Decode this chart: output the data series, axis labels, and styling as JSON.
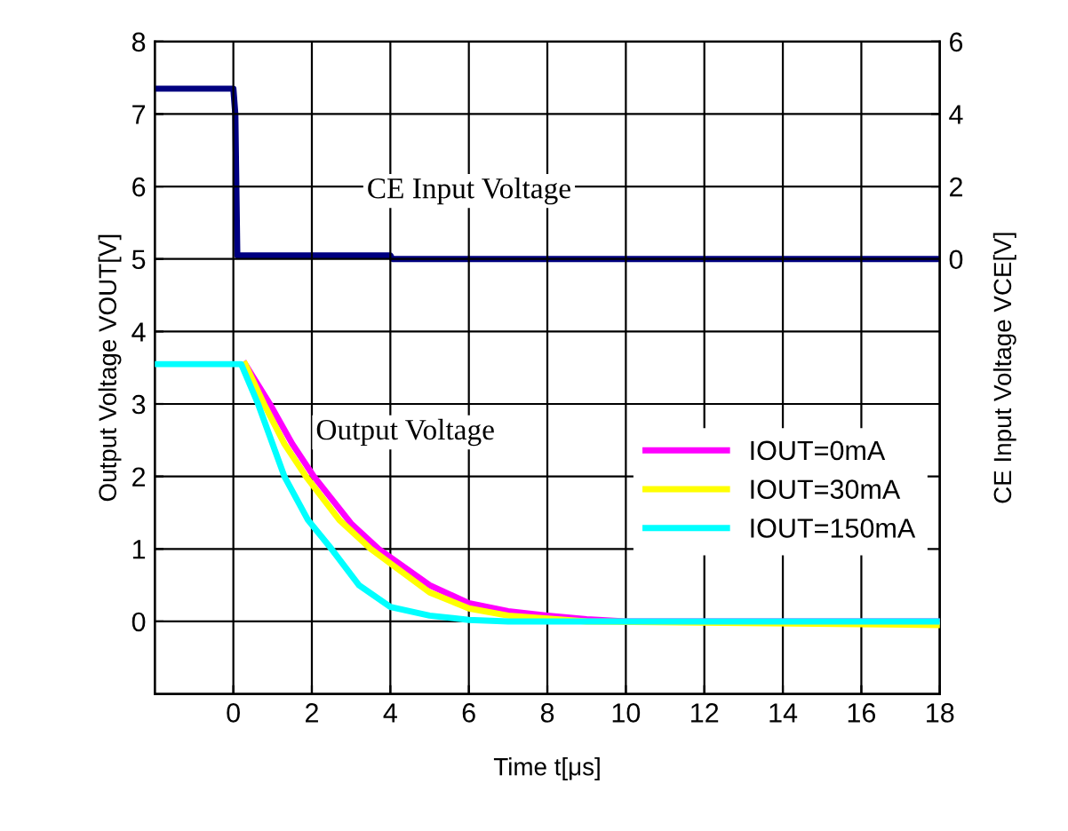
{
  "chart_data": {
    "type": "line",
    "xlabel": "Time t[μs]",
    "ylabel": "Output Voltage VOUT[V]",
    "y2label": "CE Input Voltage VCE[V]",
    "xlim": [
      -2,
      18
    ],
    "xticks": [
      0,
      2,
      4,
      6,
      8,
      10,
      12,
      14,
      16,
      18
    ],
    "ylim": [
      -1,
      8
    ],
    "yticks": [
      0,
      1,
      2,
      3,
      4,
      5,
      6,
      7,
      8
    ],
    "y2lim": [
      -12,
      6
    ],
    "y2ticks": [
      0,
      2,
      4,
      6
    ],
    "grid": true,
    "legend": "right",
    "line_style": "solid",
    "marker": "none",
    "annotations": [
      "CE Input Voltage",
      "Output Voltage"
    ],
    "series": [
      {
        "color": "#000080",
        "axis": "y2",
        "x": [
          -2,
          0,
          0.05,
          0.1,
          4,
          4.05,
          18
        ],
        "values": [
          4.7,
          4.7,
          4.0,
          0.1,
          0.1,
          0,
          0
        ]
      },
      {
        "name": "IOUT=0mA",
        "color": "#ff00ff",
        "x": [
          0.3,
          0.93,
          1.5,
          2.05,
          3,
          3.7,
          5,
          6,
          7,
          8,
          9,
          10,
          18
        ],
        "values": [
          3.55,
          3.0,
          2.45,
          2.0,
          1.35,
          1.0,
          0.5,
          0.25,
          0.14,
          0.08,
          0.03,
          0,
          0
        ]
      },
      {
        "name": "IOUT=30mA",
        "color": "#ffff00",
        "x": [
          0.3,
          0.78,
          1.3,
          1.85,
          2.7,
          3.5,
          5,
          6,
          7,
          8,
          9,
          18
        ],
        "values": [
          3.55,
          3.0,
          2.45,
          2.0,
          1.4,
          1.0,
          0.4,
          0.18,
          0.08,
          0.04,
          0,
          -0.05
        ]
      },
      {
        "name": "IOUT=150mA",
        "color": "#00ffff",
        "x": [
          -2,
          0.2,
          0.63,
          1.3,
          1.9,
          2.5,
          3.2,
          4,
          5,
          6,
          7,
          18
        ],
        "values": [
          3.55,
          3.55,
          3.0,
          2.0,
          1.4,
          1.0,
          0.5,
          0.2,
          0.08,
          0.02,
          0,
          0
        ]
      }
    ]
  }
}
